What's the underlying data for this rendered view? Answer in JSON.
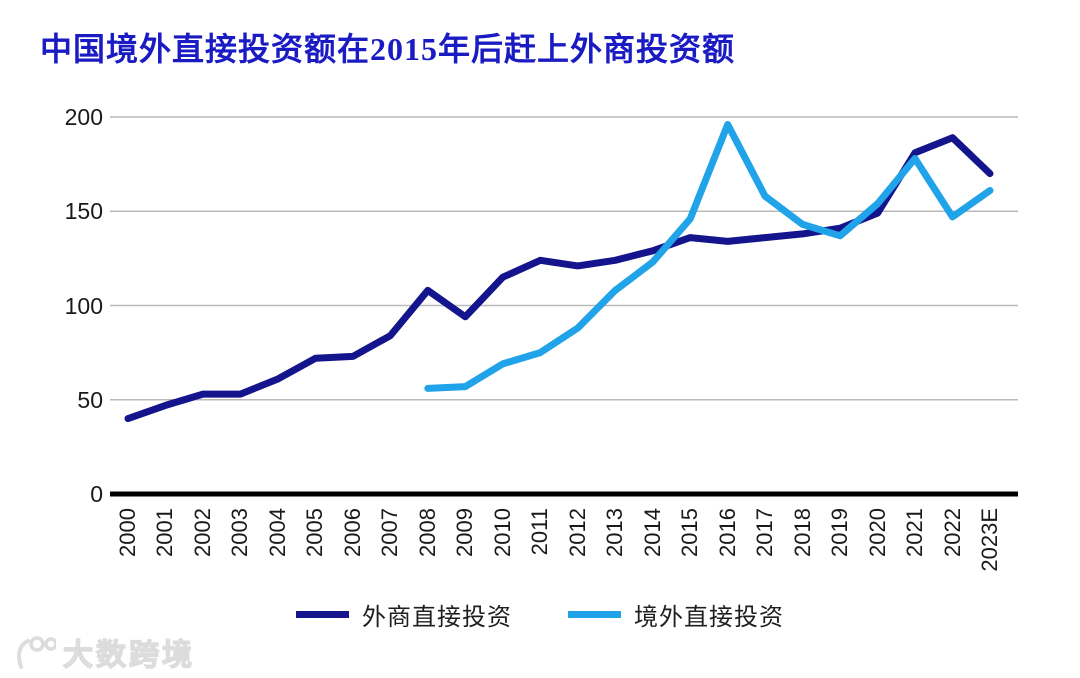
{
  "title": "中国境外直接投资额在2015年后赶上外商投资额",
  "watermark": {
    "brand": "大数跨境"
  },
  "chart_data": {
    "type": "line",
    "title": "中国境外直接投资额在2015年后赶上外商投资额",
    "xlabel": "",
    "ylabel": "",
    "ylim": [
      0,
      200
    ],
    "yticks": [
      0,
      50,
      100,
      150,
      200
    ],
    "grid": true,
    "grid_color": "#b9b9b9",
    "axis_color": "#000000",
    "legend_position": "bottom",
    "categories": [
      "2000",
      "2001",
      "2002",
      "2003",
      "2004",
      "2005",
      "2006",
      "2007",
      "2008",
      "2009",
      "2010",
      "2011",
      "2012",
      "2013",
      "2014",
      "2015",
      "2016",
      "2017",
      "2018",
      "2019",
      "2020",
      "2021",
      "2022",
      "2023E"
    ],
    "series": [
      {
        "id": "fdi",
        "name": "外商直接投资",
        "color": "#14148c",
        "values": [
          40,
          47,
          53,
          53,
          61,
          72,
          73,
          84,
          108,
          94,
          115,
          124,
          121,
          124,
          129,
          136,
          134,
          136,
          138,
          141,
          149,
          181,
          189,
          170
        ]
      },
      {
        "id": "odi",
        "name": "境外直接投资",
        "color": "#20a3e8",
        "values": [
          null,
          null,
          null,
          null,
          null,
          null,
          null,
          null,
          56,
          57,
          69,
          75,
          88,
          108,
          123,
          146,
          196,
          158,
          143,
          137,
          154,
          178,
          147,
          161
        ]
      }
    ]
  }
}
